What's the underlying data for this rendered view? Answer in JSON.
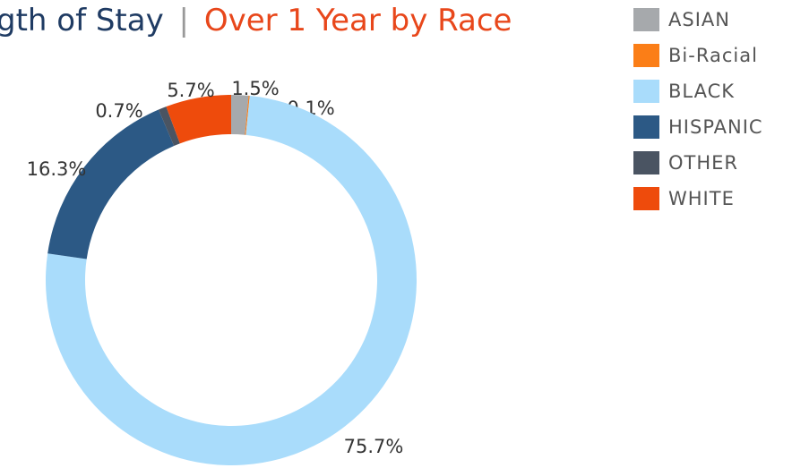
{
  "chart_data": {
    "type": "pie",
    "title": [
      "gth of Stay",
      "|",
      "Over 1 Year by Race"
    ],
    "categories": [
      "ASIAN",
      "Bi-Racial",
      "BLACK",
      "HISPANIC",
      "OTHER",
      "WHITE"
    ],
    "values": [
      1.5,
      0.1,
      75.7,
      16.3,
      0.7,
      5.7
    ],
    "value_labels": [
      "1.5%",
      "0.1%",
      "75.7%",
      "16.3%",
      "0.7%",
      "5.7%"
    ],
    "colors": [
      "#a6a9ac",
      "#fb7e17",
      "#a9dcfb",
      "#2c5985",
      "#4a5462",
      "#ee4b0c"
    ],
    "legend": "top-right"
  }
}
